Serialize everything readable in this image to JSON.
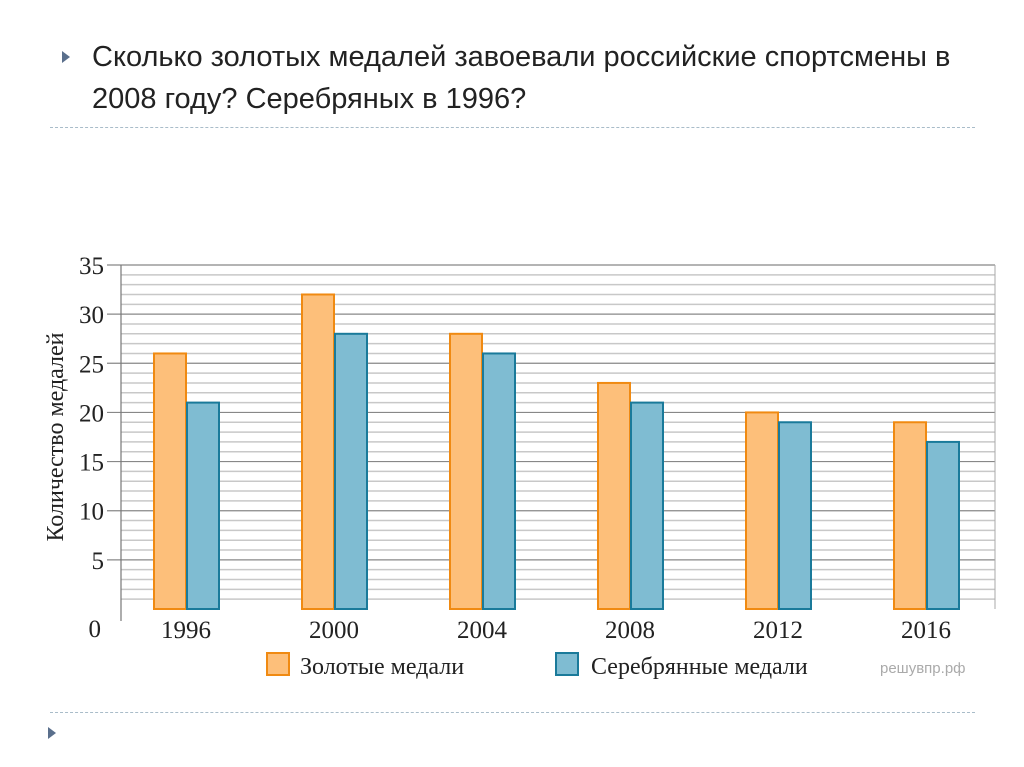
{
  "slide": {
    "title": "Сколько золотых медалей завоевали российские спортсмены в 2008 году? Серебряных в 1996?",
    "watermark": "решувпр.рф"
  },
  "chart_data": {
    "type": "bar",
    "ylabel": "Количество медалей",
    "xlabel": "",
    "ylim": [
      0,
      35
    ],
    "yticks": [
      0,
      5,
      10,
      15,
      20,
      25,
      30,
      35
    ],
    "minor_grid_step": 1,
    "grid": true,
    "legend_position": "bottom",
    "categories": [
      "1996",
      "2000",
      "2004",
      "2008",
      "2012",
      "2016"
    ],
    "series": [
      {
        "name": "Золотые медали",
        "values": [
          26,
          32,
          28,
          23,
          20,
          19
        ],
        "fill": "#fdbf7a",
        "stroke": "#f08a12"
      },
      {
        "name": "Серебрянные медали",
        "values": [
          21,
          28,
          26,
          21,
          19,
          17
        ],
        "fill": "#7fbcd2",
        "stroke": "#1a7a9a"
      }
    ]
  }
}
